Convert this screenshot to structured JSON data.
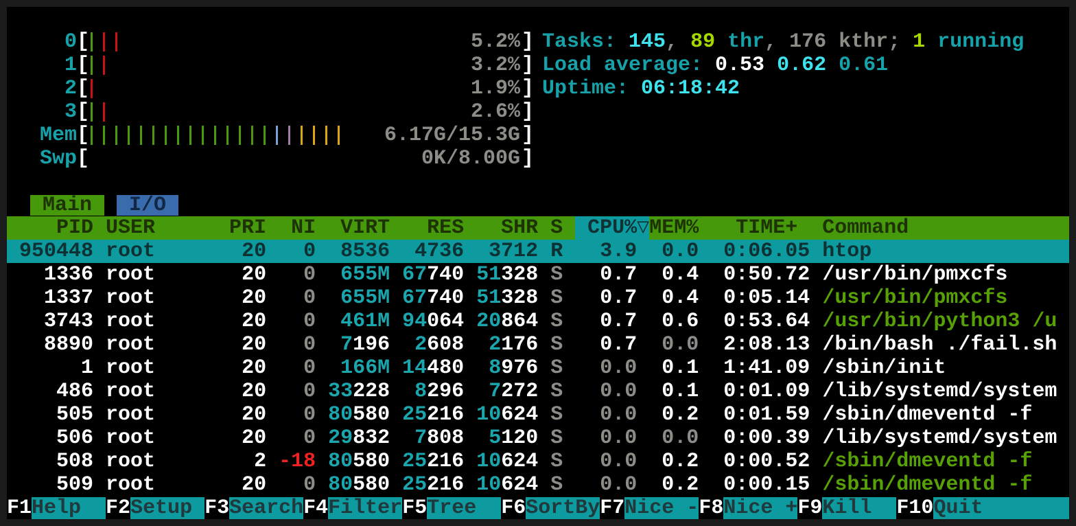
{
  "colors": {
    "accent_teal": "#0d9ba0",
    "header_green": "#46990a",
    "tab_blue": "#3a6cad",
    "text_cyan": "#17a2aa",
    "text_bright_cyan": "#3fe2ec",
    "text_gray": "#8d8d88",
    "text_green": "#57a005",
    "text_lime": "#a6d800",
    "text_red": "#ee2222",
    "bar_green": "#4a9c0d",
    "bar_red": "#cc1111",
    "bar_blue": "#7ba3d0",
    "bar_purple": "#a07cab",
    "bar_yellow": "#d8a812"
  },
  "meters": [
    {
      "label": "0",
      "value": "5.2%",
      "bars": [
        "g",
        "r",
        "r"
      ]
    },
    {
      "label": "1",
      "value": "3.2%",
      "bars": [
        "g",
        "r"
      ]
    },
    {
      "label": "2",
      "value": "1.9%",
      "bars": [
        "r"
      ]
    },
    {
      "label": "3",
      "value": "2.6%",
      "bars": [
        "g",
        "r"
      ]
    },
    {
      "label": "Mem",
      "value": "6.17G/15.3G",
      "bars": [
        "g",
        "g",
        "g",
        "g",
        "g",
        "g",
        "g",
        "g",
        "g",
        "g",
        "g",
        "g",
        "g",
        "g",
        "g",
        "bl",
        "pu",
        "y",
        "y",
        "y",
        "y"
      ]
    },
    {
      "label": "Swp",
      "value": "0K/8.00G",
      "bars": []
    }
  ],
  "info_lines": [
    [
      [
        "Tasks: ",
        "teal"
      ],
      [
        "145",
        "bcyan"
      ],
      [
        ", ",
        "gray"
      ],
      [
        "89",
        "lime"
      ],
      [
        " thr",
        "teal"
      ],
      [
        ", ",
        "gray"
      ],
      [
        "176 kthr",
        "gray"
      ],
      [
        "; ",
        "gray"
      ],
      [
        "1",
        "lime"
      ],
      [
        " running",
        "teal"
      ]
    ],
    [
      [
        "Load average: ",
        "teal"
      ],
      [
        "0.53",
        "w"
      ],
      [
        " ",
        "teal"
      ],
      [
        "0.62",
        "bcyan"
      ],
      [
        " ",
        "teal"
      ],
      [
        "0.61",
        "teal"
      ]
    ],
    [
      [
        "Uptime: ",
        "teal"
      ],
      [
        "06:18:42",
        "bcyan"
      ]
    ]
  ],
  "tabs": [
    {
      "label": "Main",
      "active": true
    },
    {
      "label": "I/O",
      "active": false
    }
  ],
  "table_header": {
    "left": "    PID USER      PRI  NI  VIRT   RES   SHR S ",
    "sort": " CPU%▽",
    "right": "MEM%   TIME+  Command"
  },
  "rows": [
    {
      "pid": "950448",
      "user": "root",
      "pri": "20",
      "ni": "0",
      "nic": "gray",
      "virt": [
        [
          "8536",
          "w"
        ]
      ],
      "res": [
        [
          "4736",
          "w"
        ]
      ],
      "shr": [
        [
          "3712",
          "w"
        ]
      ],
      "s": "R",
      "cpu": "3.9",
      "cpuc": "w",
      "mem": "0.0",
      "memc": "gray",
      "time": "0:06.05",
      "cmd": "htop",
      "cmdc": "w",
      "sel": true
    },
    {
      "pid": "1336",
      "user": "root",
      "pri": "20",
      "ni": "0",
      "nic": "gray",
      "virt": [
        [
          "655M",
          "cyan"
        ]
      ],
      "res": [
        [
          "67",
          "cyan"
        ],
        [
          "740",
          "w"
        ]
      ],
      "shr": [
        [
          "51",
          "cyan"
        ],
        [
          "328",
          "w"
        ]
      ],
      "s": "S",
      "cpu": "0.7",
      "cpuc": "w",
      "mem": "0.4",
      "memc": "w",
      "time": "0:50.72",
      "cmd": "/usr/bin/pmxcfs",
      "cmdc": "w"
    },
    {
      "pid": "1337",
      "user": "root",
      "pri": "20",
      "ni": "0",
      "nic": "gray",
      "virt": [
        [
          "655M",
          "cyan"
        ]
      ],
      "res": [
        [
          "67",
          "cyan"
        ],
        [
          "740",
          "w"
        ]
      ],
      "shr": [
        [
          "51",
          "cyan"
        ],
        [
          "328",
          "w"
        ]
      ],
      "s": "S",
      "cpu": "0.7",
      "cpuc": "w",
      "mem": "0.4",
      "memc": "w",
      "time": "0:05.14",
      "cmd": "/usr/bin/pmxcfs",
      "cmdc": "green"
    },
    {
      "pid": "3743",
      "user": "root",
      "pri": "20",
      "ni": "0",
      "nic": "gray",
      "virt": [
        [
          "461M",
          "cyan"
        ]
      ],
      "res": [
        [
          "94",
          "cyan"
        ],
        [
          "064",
          "w"
        ]
      ],
      "shr": [
        [
          "20",
          "cyan"
        ],
        [
          "864",
          "w"
        ]
      ],
      "s": "S",
      "cpu": "0.7",
      "cpuc": "w",
      "mem": "0.6",
      "memc": "w",
      "time": "0:53.64",
      "cmd": "/usr/bin/python3 /u",
      "cmdc": "green"
    },
    {
      "pid": "8890",
      "user": "root",
      "pri": "20",
      "ni": "0",
      "nic": "gray",
      "virt": [
        [
          "7",
          "cyan"
        ],
        [
          "196",
          "w"
        ]
      ],
      "res": [
        [
          "2",
          "cyan"
        ],
        [
          "608",
          "w"
        ]
      ],
      "shr": [
        [
          "2",
          "cyan"
        ],
        [
          "176",
          "w"
        ]
      ],
      "s": "S",
      "cpu": "0.7",
      "cpuc": "w",
      "mem": "0.0",
      "memc": "gray",
      "time": "2:08.13",
      "cmd": "/bin/bash ./fail.sh",
      "cmdc": "w"
    },
    {
      "pid": "1",
      "user": "root",
      "pri": "20",
      "ni": "0",
      "nic": "gray",
      "virt": [
        [
          "166M",
          "cyan"
        ]
      ],
      "res": [
        [
          "14",
          "cyan"
        ],
        [
          "480",
          "w"
        ]
      ],
      "shr": [
        [
          "8",
          "cyan"
        ],
        [
          "976",
          "w"
        ]
      ],
      "s": "S",
      "cpu": "0.0",
      "cpuc": "gray",
      "mem": "0.1",
      "memc": "w",
      "time": "1:41.09",
      "cmd": "/sbin/init",
      "cmdc": "w"
    },
    {
      "pid": "486",
      "user": "root",
      "pri": "20",
      "ni": "0",
      "nic": "gray",
      "virt": [
        [
          "33",
          "cyan"
        ],
        [
          "228",
          "w"
        ]
      ],
      "res": [
        [
          "8",
          "cyan"
        ],
        [
          "296",
          "w"
        ]
      ],
      "shr": [
        [
          "7",
          "cyan"
        ],
        [
          "272",
          "w"
        ]
      ],
      "s": "S",
      "cpu": "0.0",
      "cpuc": "gray",
      "mem": "0.1",
      "memc": "w",
      "time": "0:01.09",
      "cmd": "/lib/systemd/system",
      "cmdc": "w"
    },
    {
      "pid": "505",
      "user": "root",
      "pri": "20",
      "ni": "0",
      "nic": "gray",
      "virt": [
        [
          "80",
          "cyan"
        ],
        [
          "580",
          "w"
        ]
      ],
      "res": [
        [
          "25",
          "cyan"
        ],
        [
          "216",
          "w"
        ]
      ],
      "shr": [
        [
          "10",
          "cyan"
        ],
        [
          "624",
          "w"
        ]
      ],
      "s": "S",
      "cpu": "0.0",
      "cpuc": "gray",
      "mem": "0.2",
      "memc": "w",
      "time": "0:01.59",
      "cmd": "/sbin/dmeventd -f",
      "cmdc": "w"
    },
    {
      "pid": "506",
      "user": "root",
      "pri": "20",
      "ni": "0",
      "nic": "gray",
      "virt": [
        [
          "29",
          "cyan"
        ],
        [
          "832",
          "w"
        ]
      ],
      "res": [
        [
          "7",
          "cyan"
        ],
        [
          "808",
          "w"
        ]
      ],
      "shr": [
        [
          "5",
          "cyan"
        ],
        [
          "120",
          "w"
        ]
      ],
      "s": "S",
      "cpu": "0.0",
      "cpuc": "gray",
      "mem": "0.0",
      "memc": "gray",
      "time": "0:00.39",
      "cmd": "/lib/systemd/system",
      "cmdc": "w"
    },
    {
      "pid": "508",
      "user": "root",
      "pri": "2",
      "ni": "-18",
      "nic": "red",
      "virt": [
        [
          "80",
          "cyan"
        ],
        [
          "580",
          "w"
        ]
      ],
      "res": [
        [
          "25",
          "cyan"
        ],
        [
          "216",
          "w"
        ]
      ],
      "shr": [
        [
          "10",
          "cyan"
        ],
        [
          "624",
          "w"
        ]
      ],
      "s": "S",
      "cpu": "0.0",
      "cpuc": "gray",
      "mem": "0.2",
      "memc": "w",
      "time": "0:00.52",
      "cmd": "/sbin/dmeventd -f",
      "cmdc": "green"
    },
    {
      "pid": "509",
      "user": "root",
      "pri": "20",
      "ni": "0",
      "nic": "gray",
      "virt": [
        [
          "80",
          "cyan"
        ],
        [
          "580",
          "w"
        ]
      ],
      "res": [
        [
          "25",
          "cyan"
        ],
        [
          "216",
          "w"
        ]
      ],
      "shr": [
        [
          "10",
          "cyan"
        ],
        [
          "624",
          "w"
        ]
      ],
      "s": "S",
      "cpu": "0.0",
      "cpuc": "gray",
      "mem": "0.2",
      "memc": "w",
      "time": "0:00.15",
      "cmd": "/sbin/dmeventd -f",
      "cmdc": "green"
    }
  ],
  "fkeys": [
    {
      "key": "F1",
      "label": "Help"
    },
    {
      "key": "F2",
      "label": "Setup"
    },
    {
      "key": "F3",
      "label": "Search"
    },
    {
      "key": "F4",
      "label": "Filter"
    },
    {
      "key": "F5",
      "label": "Tree"
    },
    {
      "key": "F6",
      "label": "SortBy"
    },
    {
      "key": "F7",
      "label": "Nice -"
    },
    {
      "key": "F8",
      "label": "Nice +"
    },
    {
      "key": "F9",
      "label": "Kill"
    },
    {
      "key": "F10",
      "label": "Quit"
    }
  ]
}
